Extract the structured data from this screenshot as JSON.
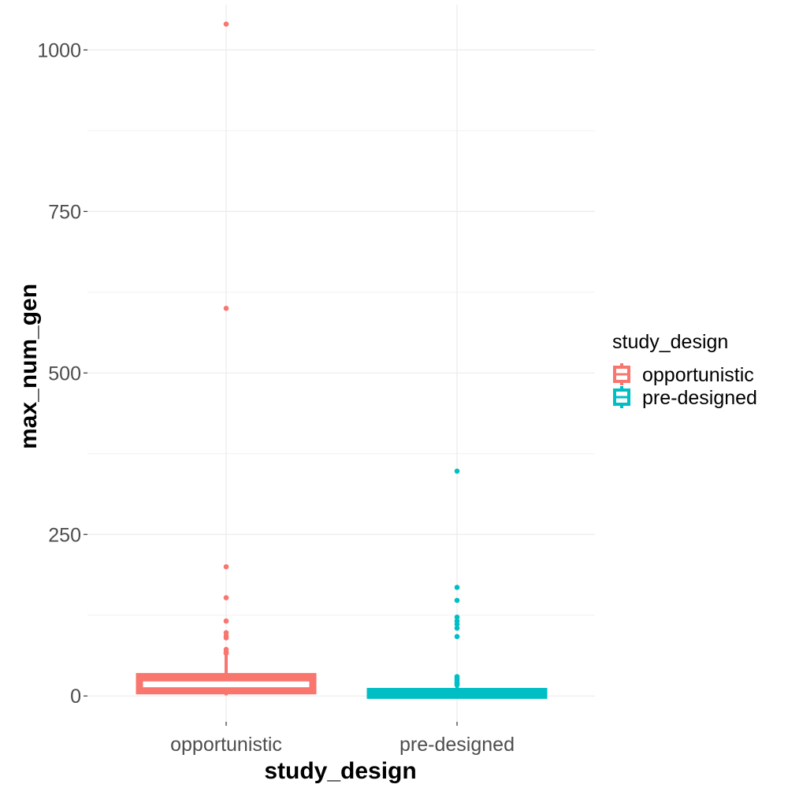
{
  "chart_data": {
    "type": "boxplot",
    "xlabel": "study_design",
    "ylabel": "max_num_gen",
    "categories": [
      "opportunistic",
      "pre-designed"
    ],
    "ylim": [
      -40,
      1070
    ],
    "yticks": [
      0,
      250,
      500,
      750,
      1000
    ],
    "grid": true,
    "legend": {
      "title": "study_design",
      "placement": "right",
      "entries": [
        "opportunistic",
        "pre-designed"
      ]
    },
    "colors": {
      "opportunistic": "#F8766D",
      "pre-designed": "#00BFC4"
    },
    "series": [
      {
        "name": "opportunistic",
        "box": {
          "lower_whisker": 1,
          "q1": 8,
          "median": 25,
          "q3": 30,
          "upper_whisker": 63
        },
        "outliers": [
          1040,
          600,
          200,
          152,
          116,
          98,
          93,
          90,
          72,
          68,
          66
        ]
      },
      {
        "name": "pre-designed",
        "box": {
          "lower_whisker": 0,
          "q1": 1,
          "median": 3,
          "q3": 7,
          "upper_whisker": 14
        },
        "outliers": [
          348,
          168,
          148,
          122,
          116,
          111,
          105,
          92,
          30,
          27,
          24,
          21,
          19,
          17
        ]
      }
    ]
  }
}
